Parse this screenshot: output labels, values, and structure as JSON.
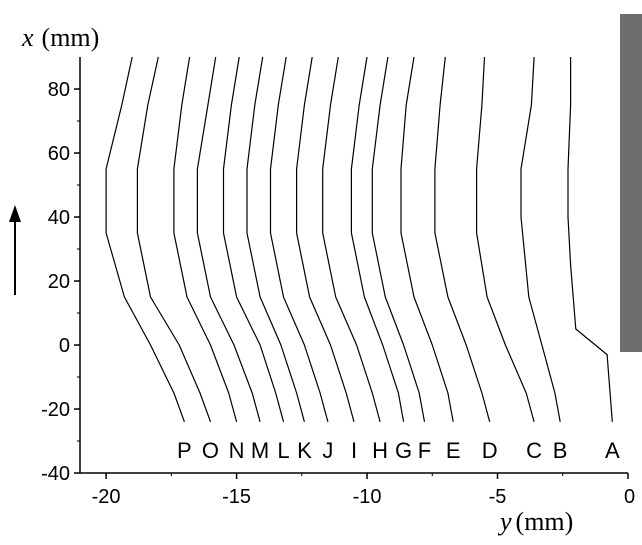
{
  "chart_data": {
    "type": "line",
    "xlabel": "y (mm)",
    "ylabel": "x (mm)",
    "xlabel_var": "y",
    "xlabel_unit": "(mm)",
    "ylabel_var": "x",
    "ylabel_unit": "(mm)",
    "xlim": [
      -21,
      0
    ],
    "ylim": [
      -40,
      90
    ],
    "xticks": [
      -20,
      -15,
      -10,
      -5,
      0
    ],
    "yticks": [
      -40,
      -20,
      0,
      20,
      40,
      60,
      80
    ],
    "grid": false,
    "legend": "none",
    "colors": {
      "line": "#000000",
      "side_bar": "#6e6e6e"
    },
    "annotations": {
      "arrow": "up-arrow"
    },
    "series": [
      {
        "name": "P",
        "points": [
          [
            -19.0,
            90
          ],
          [
            -19.4,
            75
          ],
          [
            -20.0,
            55
          ],
          [
            -20.0,
            35
          ],
          [
            -19.3,
            15
          ],
          [
            -18.3,
            0
          ],
          [
            -17.4,
            -15
          ],
          [
            -17.0,
            -24
          ]
        ]
      },
      {
        "name": "O",
        "points": [
          [
            -18.0,
            90
          ],
          [
            -18.4,
            75
          ],
          [
            -18.8,
            55
          ],
          [
            -18.8,
            35
          ],
          [
            -18.3,
            15
          ],
          [
            -17.2,
            0
          ],
          [
            -16.4,
            -15
          ],
          [
            -16.0,
            -24
          ]
        ]
      },
      {
        "name": "N",
        "points": [
          [
            -16.8,
            90
          ],
          [
            -17.1,
            75
          ],
          [
            -17.4,
            55
          ],
          [
            -17.4,
            35
          ],
          [
            -16.9,
            15
          ],
          [
            -16.0,
            0
          ],
          [
            -15.3,
            -15
          ],
          [
            -15.0,
            -24
          ]
        ]
      },
      {
        "name": "M",
        "points": [
          [
            -15.8,
            90
          ],
          [
            -16.1,
            75
          ],
          [
            -16.5,
            55
          ],
          [
            -16.5,
            35
          ],
          [
            -16.0,
            15
          ],
          [
            -15.1,
            0
          ],
          [
            -14.4,
            -15
          ],
          [
            -14.1,
            -24
          ]
        ]
      },
      {
        "name": "L",
        "points": [
          [
            -14.9,
            90
          ],
          [
            -15.2,
            75
          ],
          [
            -15.5,
            55
          ],
          [
            -15.5,
            35
          ],
          [
            -15.0,
            15
          ],
          [
            -14.1,
            0
          ],
          [
            -13.5,
            -15
          ],
          [
            -13.2,
            -24
          ]
        ]
      },
      {
        "name": "K",
        "points": [
          [
            -14.0,
            90
          ],
          [
            -14.3,
            75
          ],
          [
            -14.6,
            55
          ],
          [
            -14.6,
            35
          ],
          [
            -14.1,
            15
          ],
          [
            -13.3,
            0
          ],
          [
            -12.7,
            -15
          ],
          [
            -12.4,
            -24
          ]
        ]
      },
      {
        "name": "J",
        "points": [
          [
            -13.1,
            90
          ],
          [
            -13.4,
            75
          ],
          [
            -13.7,
            55
          ],
          [
            -13.7,
            35
          ],
          [
            -13.2,
            15
          ],
          [
            -12.4,
            0
          ],
          [
            -11.8,
            -15
          ],
          [
            -11.5,
            -24
          ]
        ]
      },
      {
        "name": "I",
        "points": [
          [
            -12.1,
            90
          ],
          [
            -12.4,
            75
          ],
          [
            -12.7,
            55
          ],
          [
            -12.7,
            35
          ],
          [
            -12.2,
            15
          ],
          [
            -11.4,
            0
          ],
          [
            -10.8,
            -15
          ],
          [
            -10.5,
            -24
          ]
        ]
      },
      {
        "name": "H",
        "points": [
          [
            -11.1,
            90
          ],
          [
            -11.4,
            75
          ],
          [
            -11.7,
            55
          ],
          [
            -11.7,
            35
          ],
          [
            -11.2,
            15
          ],
          [
            -10.4,
            0
          ],
          [
            -9.8,
            -15
          ],
          [
            -9.5,
            -24
          ]
        ]
      },
      {
        "name": "G",
        "points": [
          [
            -10.0,
            90
          ],
          [
            -10.3,
            75
          ],
          [
            -10.6,
            55
          ],
          [
            -10.6,
            35
          ],
          [
            -10.1,
            15
          ],
          [
            -9.4,
            0
          ],
          [
            -8.8,
            -15
          ],
          [
            -8.6,
            -24
          ]
        ]
      },
      {
        "name": "F",
        "points": [
          [
            -9.2,
            90
          ],
          [
            -9.5,
            75
          ],
          [
            -9.8,
            55
          ],
          [
            -9.8,
            35
          ],
          [
            -9.3,
            15
          ],
          [
            -8.6,
            0
          ],
          [
            -8.0,
            -15
          ],
          [
            -7.8,
            -24
          ]
        ]
      },
      {
        "name": "E",
        "points": [
          [
            -8.2,
            90
          ],
          [
            -8.5,
            75
          ],
          [
            -8.7,
            55
          ],
          [
            -8.7,
            35
          ],
          [
            -8.2,
            15
          ],
          [
            -7.5,
            0
          ],
          [
            -6.9,
            -15
          ],
          [
            -6.7,
            -24
          ]
        ]
      },
      {
        "name": "D",
        "points": [
          [
            -7.0,
            90
          ],
          [
            -7.2,
            75
          ],
          [
            -7.4,
            55
          ],
          [
            -7.4,
            35
          ],
          [
            -6.9,
            15
          ],
          [
            -6.2,
            0
          ],
          [
            -5.6,
            -15
          ],
          [
            -5.3,
            -24
          ]
        ]
      },
      {
        "name": "C",
        "points": [
          [
            -5.5,
            90
          ],
          [
            -5.6,
            75
          ],
          [
            -5.8,
            55
          ],
          [
            -5.8,
            35
          ],
          [
            -5.4,
            15
          ],
          [
            -4.7,
            0
          ],
          [
            -3.9,
            -15
          ],
          [
            -3.6,
            -24
          ]
        ]
      },
      {
        "name": "B",
        "points": [
          [
            -3.6,
            90
          ],
          [
            -3.7,
            75
          ],
          [
            -4.1,
            55
          ],
          [
            -4.1,
            40
          ],
          [
            -3.8,
            15
          ],
          [
            -3.3,
            0
          ],
          [
            -2.8,
            -15
          ],
          [
            -2.6,
            -24
          ]
        ]
      },
      {
        "name": "A",
        "points": [
          [
            -2.2,
            90
          ],
          [
            -2.2,
            75
          ],
          [
            -2.3,
            55
          ],
          [
            -2.3,
            40
          ],
          [
            -2.2,
            25
          ],
          [
            -2.0,
            5
          ],
          [
            -0.8,
            -3
          ],
          [
            -0.6,
            -24
          ]
        ]
      }
    ]
  }
}
